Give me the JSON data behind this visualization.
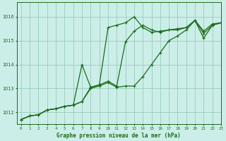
{
  "bg_color": "#cceee8",
  "grid_color": "#99ccbb",
  "line_color": "#1a6b1a",
  "xlabel": "Graphe pression niveau de la mer (hPa)",
  "xlim": [
    -0.5,
    23
  ],
  "ylim": [
    1011.5,
    1016.6
  ],
  "yticks": [
    1012,
    1013,
    1014,
    1015,
    1016
  ],
  "xticks": [
    0,
    1,
    2,
    3,
    4,
    5,
    6,
    7,
    8,
    9,
    10,
    11,
    12,
    13,
    14,
    15,
    16,
    17,
    18,
    19,
    20,
    21,
    22,
    23
  ],
  "series1_x": [
    0,
    1,
    2,
    3,
    4,
    5,
    6,
    7,
    8,
    9,
    10,
    11,
    12,
    13,
    14,
    15,
    16,
    17,
    18,
    19,
    20,
    21,
    22,
    23
  ],
  "series1_y": [
    1011.7,
    1011.85,
    1011.9,
    1012.1,
    1012.15,
    1012.25,
    1012.3,
    1012.45,
    1013.05,
    1013.15,
    1015.55,
    1015.65,
    1015.75,
    1016.0,
    1015.55,
    1015.35,
    1015.4,
    1015.45,
    1015.5,
    1015.55,
    1015.85,
    1015.1,
    1015.65,
    1015.75
  ],
  "series2_x": [
    0,
    1,
    2,
    3,
    4,
    5,
    6,
    7,
    8,
    9,
    10,
    11,
    12,
    13,
    14,
    15,
    16,
    17,
    18,
    19,
    20,
    21,
    22,
    23
  ],
  "series2_y": [
    1011.7,
    1011.85,
    1011.9,
    1012.1,
    1012.15,
    1012.25,
    1012.3,
    1014.0,
    1013.05,
    1013.15,
    1013.3,
    1013.1,
    1014.95,
    1015.4,
    1015.65,
    1015.45,
    1015.35,
    1015.45,
    1015.45,
    1015.55,
    1015.85,
    1015.3,
    1015.65,
    1015.75
  ],
  "series3_x": [
    0,
    1,
    2,
    3,
    4,
    5,
    6,
    7,
    8,
    9,
    10,
    11,
    12,
    13,
    14,
    15,
    16,
    17,
    18,
    19,
    20,
    21,
    22,
    23
  ],
  "series3_y": [
    1011.7,
    1011.85,
    1011.9,
    1012.1,
    1012.15,
    1012.25,
    1012.3,
    1012.45,
    1013.0,
    1013.1,
    1013.25,
    1013.05,
    1013.1,
    1013.1,
    1013.5,
    1014.0,
    1014.5,
    1015.0,
    1015.2,
    1015.45,
    1015.85,
    1015.4,
    1015.7,
    1015.75
  ]
}
